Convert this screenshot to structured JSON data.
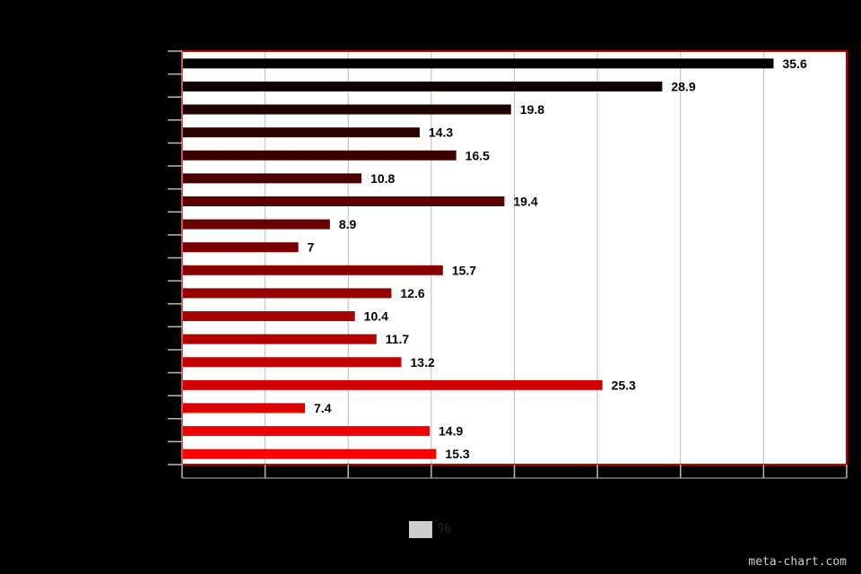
{
  "chart_data": {
    "type": "bar",
    "orientation": "horizontal",
    "values": [
      35.6,
      28.9,
      19.8,
      14.3,
      16.5,
      10.8,
      19.4,
      8.9,
      7,
      15.7,
      12.6,
      10.4,
      11.7,
      13.2,
      25.3,
      7.4,
      14.9,
      15.3
    ],
    "data_labels": [
      "35.6",
      "28.9",
      "19.8",
      "14.3",
      "16.5",
      "10.8",
      "19.4",
      "8.9",
      "7",
      "15.7",
      "12.6",
      "10.4",
      "11.7",
      "13.2",
      "25.3",
      "7.4",
      "14.9",
      "15.3"
    ],
    "series": [
      {
        "name": "%"
      }
    ],
    "xlim": [
      0,
      40
    ],
    "grid": true,
    "legend": "bottom-center",
    "colors": {
      "background": "#000000",
      "plot_background": "#ffffff",
      "plot_border": "#c00000",
      "gridline": "#bbbbbb",
      "bar_start": "#000000",
      "bar_end": "#ff0000",
      "legend_swatch": "#cccccc"
    }
  },
  "credit": "meta-chart.com"
}
